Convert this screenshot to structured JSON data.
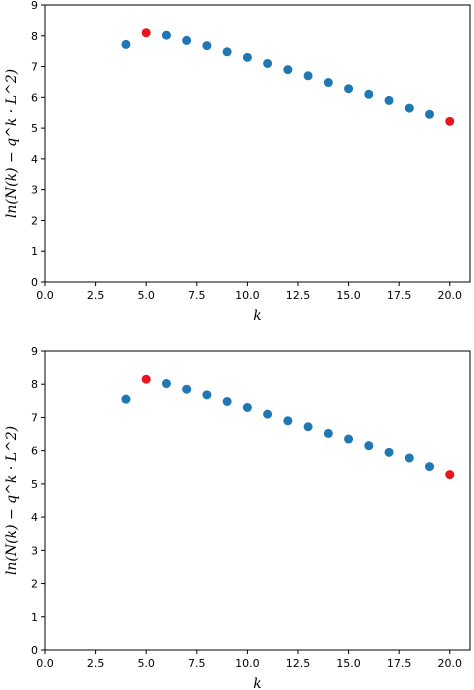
{
  "chart_data": [
    {
      "type": "scatter",
      "xlabel": "k",
      "ylabel": "ln(N(k) − q^k · L^2)",
      "xlim": [
        0,
        21
      ],
      "ylim": [
        0,
        9
      ],
      "xticks": [
        "0.0",
        "2.5",
        "5.0",
        "7.5",
        "10.0",
        "12.5",
        "15.0",
        "17.5",
        "20.0"
      ],
      "yticks": [
        "0",
        "1",
        "2",
        "3",
        "4",
        "5",
        "6",
        "7",
        "8",
        "9"
      ],
      "grid": false,
      "colors": {
        "blue": "#1f77b4",
        "red": "#e8141e"
      },
      "points": [
        {
          "x": 4,
          "y": 7.72,
          "color": "blue"
        },
        {
          "x": 5,
          "y": 8.1,
          "color": "red"
        },
        {
          "x": 6,
          "y": 8.02,
          "color": "blue"
        },
        {
          "x": 7,
          "y": 7.85,
          "color": "blue"
        },
        {
          "x": 8,
          "y": 7.68,
          "color": "blue"
        },
        {
          "x": 9,
          "y": 7.48,
          "color": "blue"
        },
        {
          "x": 10,
          "y": 7.3,
          "color": "blue"
        },
        {
          "x": 11,
          "y": 7.1,
          "color": "blue"
        },
        {
          "x": 12,
          "y": 6.9,
          "color": "blue"
        },
        {
          "x": 13,
          "y": 6.7,
          "color": "blue"
        },
        {
          "x": 14,
          "y": 6.48,
          "color": "blue"
        },
        {
          "x": 15,
          "y": 6.28,
          "color": "blue"
        },
        {
          "x": 16,
          "y": 6.1,
          "color": "blue"
        },
        {
          "x": 17,
          "y": 5.9,
          "color": "blue"
        },
        {
          "x": 18,
          "y": 5.65,
          "color": "blue"
        },
        {
          "x": 19,
          "y": 5.45,
          "color": "blue"
        },
        {
          "x": 20,
          "y": 5.22,
          "color": "red"
        }
      ]
    },
    {
      "type": "scatter",
      "xlabel": "k",
      "ylabel": "ln(N(k) − q^k · L^2)",
      "xlim": [
        0,
        21
      ],
      "ylim": [
        0,
        9
      ],
      "xticks": [
        "0.0",
        "2.5",
        "5.0",
        "7.5",
        "10.0",
        "12.5",
        "15.0",
        "17.5",
        "20.0"
      ],
      "yticks": [
        "0",
        "1",
        "2",
        "3",
        "4",
        "5",
        "6",
        "7",
        "8",
        "9"
      ],
      "grid": false,
      "colors": {
        "blue": "#1f77b4",
        "red": "#e8141e"
      },
      "points": [
        {
          "x": 4,
          "y": 7.55,
          "color": "blue"
        },
        {
          "x": 5,
          "y": 8.15,
          "color": "red"
        },
        {
          "x": 6,
          "y": 8.02,
          "color": "blue"
        },
        {
          "x": 7,
          "y": 7.85,
          "color": "blue"
        },
        {
          "x": 8,
          "y": 7.68,
          "color": "blue"
        },
        {
          "x": 9,
          "y": 7.48,
          "color": "blue"
        },
        {
          "x": 10,
          "y": 7.3,
          "color": "blue"
        },
        {
          "x": 11,
          "y": 7.1,
          "color": "blue"
        },
        {
          "x": 12,
          "y": 6.9,
          "color": "blue"
        },
        {
          "x": 13,
          "y": 6.72,
          "color": "blue"
        },
        {
          "x": 14,
          "y": 6.52,
          "color": "blue"
        },
        {
          "x": 15,
          "y": 6.35,
          "color": "blue"
        },
        {
          "x": 16,
          "y": 6.15,
          "color": "blue"
        },
        {
          "x": 17,
          "y": 5.95,
          "color": "blue"
        },
        {
          "x": 18,
          "y": 5.78,
          "color": "blue"
        },
        {
          "x": 19,
          "y": 5.52,
          "color": "blue"
        },
        {
          "x": 20,
          "y": 5.28,
          "color": "red"
        }
      ]
    }
  ]
}
